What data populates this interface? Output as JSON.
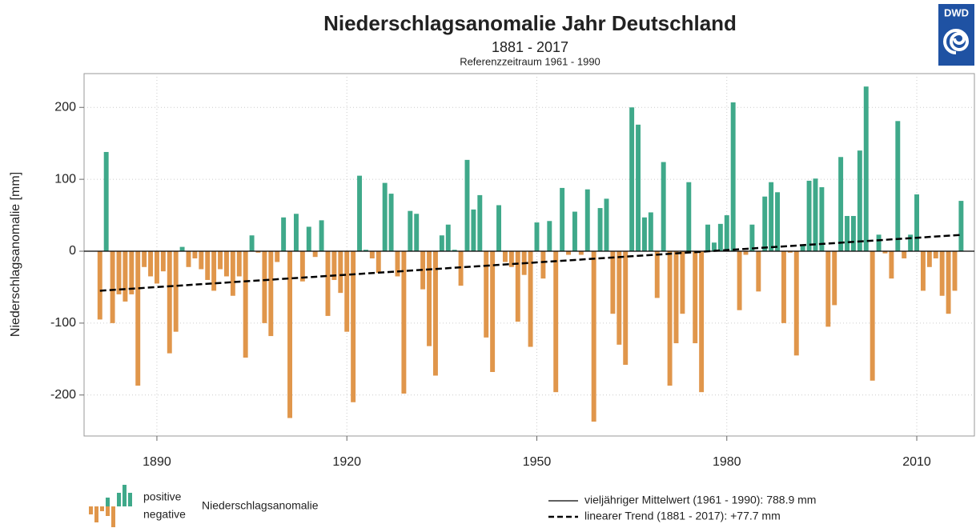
{
  "logo": "DWD",
  "chart_data": {
    "type": "bar",
    "title": "Niederschlagsanomalie Jahr Deutschland",
    "subtitle": "1881 - 2017",
    "note": "Referenzzeitraum 1961 - 1990",
    "ylabel": "Niederschlagsanomalie [mm]",
    "x": [
      1881,
      1882,
      1883,
      1884,
      1885,
      1886,
      1887,
      1888,
      1889,
      1890,
      1891,
      1892,
      1893,
      1894,
      1895,
      1896,
      1897,
      1898,
      1899,
      1900,
      1901,
      1902,
      1903,
      1904,
      1905,
      1906,
      1907,
      1908,
      1909,
      1910,
      1911,
      1912,
      1913,
      1914,
      1915,
      1916,
      1917,
      1918,
      1919,
      1920,
      1921,
      1922,
      1923,
      1924,
      1925,
      1926,
      1927,
      1928,
      1929,
      1930,
      1931,
      1932,
      1933,
      1934,
      1935,
      1936,
      1937,
      1938,
      1939,
      1940,
      1941,
      1942,
      1943,
      1944,
      1945,
      1946,
      1947,
      1948,
      1949,
      1950,
      1951,
      1952,
      1953,
      1954,
      1955,
      1956,
      1957,
      1958,
      1959,
      1960,
      1961,
      1962,
      1963,
      1964,
      1965,
      1966,
      1967,
      1968,
      1969,
      1970,
      1971,
      1972,
      1973,
      1974,
      1975,
      1976,
      1977,
      1978,
      1979,
      1980,
      1981,
      1982,
      1983,
      1984,
      1985,
      1986,
      1987,
      1988,
      1989,
      1990,
      1991,
      1992,
      1993,
      1994,
      1995,
      1996,
      1997,
      1998,
      1999,
      2000,
      2001,
      2002,
      2003,
      2004,
      2005,
      2006,
      2007,
      2008,
      2009,
      2010,
      2011,
      2012,
      2013,
      2014,
      2015,
      2016,
      2017
    ],
    "values": [
      -95,
      138,
      -100,
      -60,
      -70,
      -60,
      -187,
      -22,
      -35,
      -45,
      -28,
      -142,
      -112,
      6,
      -22,
      -10,
      -25,
      -40,
      -55,
      -25,
      -35,
      -62,
      -35,
      -148,
      22,
      -2,
      -100,
      -118,
      -15,
      47,
      -232,
      52,
      -42,
      34,
      -8,
      43,
      -90,
      -40,
      -58,
      -112,
      -210,
      105,
      2,
      -10,
      -30,
      95,
      80,
      -35,
      -198,
      56,
      52,
      -53,
      -132,
      -173,
      22,
      37,
      2,
      -48,
      127,
      58,
      78,
      -120,
      -168,
      64,
      -15,
      -22,
      -98,
      -33,
      -133,
      40,
      -38,
      42,
      -196,
      88,
      -5,
      55,
      -5,
      86,
      -237,
      60,
      73,
      -87,
      -130,
      -158,
      200,
      176,
      47,
      54,
      -65,
      124,
      -187,
      -128,
      -87,
      96,
      -128,
      -196,
      37,
      12,
      38,
      50,
      207,
      -82,
      -5,
      37,
      -56,
      76,
      96,
      82,
      -100,
      -2,
      -145,
      8,
      98,
      101,
      89,
      -105,
      -75,
      131,
      49,
      49,
      140,
      229,
      -180,
      23,
      -3,
      -38,
      181,
      -10,
      23,
      79,
      -55,
      -22,
      -10,
      -62,
      -87,
      -55,
      70
    ],
    "positive_color": "#3fa98a",
    "negative_color": "#e0964b",
    "legend_positive": "positive",
    "legend_negative": "negative",
    "legend_label": "Niederschlagsanomalie",
    "reference_line": {
      "label": "vieljähriger Mittelwert (1961 - 1990): 788.9 mm",
      "value": 0
    },
    "trend": {
      "label": "linearer Trend (1881 - 2017): +77.7 mm",
      "x": [
        1881,
        2017
      ],
      "values": [
        -55,
        22.7
      ]
    },
    "xlim": [
      1878.5,
      2019.1
    ],
    "ylim": [
      -257,
      247
    ],
    "xticks": [
      1890,
      1920,
      1950,
      1980,
      2010
    ],
    "yticks": [
      -200,
      -100,
      0,
      100,
      200
    ],
    "grid": true
  }
}
